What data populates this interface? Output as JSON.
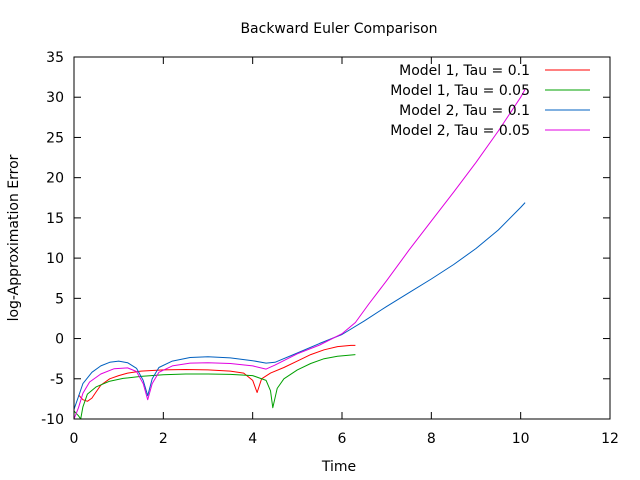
{
  "chart_data": {
    "type": "line",
    "title": "Backward Euler Comparison",
    "xlabel": "Time",
    "ylabel": "log-Approximation Error",
    "xlim": [
      0,
      12
    ],
    "ylim": [
      -10,
      35
    ],
    "xticks": [
      0,
      2,
      4,
      6,
      8,
      10,
      12
    ],
    "yticks": [
      -10,
      -5,
      0,
      5,
      10,
      15,
      20,
      25,
      30,
      35
    ],
    "grid": false,
    "legend_position": "top-right",
    "series": [
      {
        "name": "Model 1, Tau = 0.1",
        "color": "#ff0000",
        "points": [
          [
            0.1,
            -7.0
          ],
          [
            0.2,
            -7.6
          ],
          [
            0.3,
            -7.8
          ],
          [
            0.4,
            -7.4
          ],
          [
            0.5,
            -6.6
          ],
          [
            0.6,
            -5.8
          ],
          [
            0.8,
            -5.0
          ],
          [
            1.0,
            -4.6
          ],
          [
            1.2,
            -4.3
          ],
          [
            1.5,
            -4.05
          ],
          [
            2.0,
            -3.9
          ],
          [
            2.5,
            -3.85
          ],
          [
            3.0,
            -3.9
          ],
          [
            3.5,
            -4.05
          ],
          [
            3.8,
            -4.3
          ],
          [
            4.0,
            -5.2
          ],
          [
            4.1,
            -6.7
          ],
          [
            4.2,
            -5.0
          ],
          [
            4.4,
            -4.3
          ],
          [
            4.7,
            -3.6
          ],
          [
            5.0,
            -2.8
          ],
          [
            5.3,
            -2.0
          ],
          [
            5.6,
            -1.4
          ],
          [
            5.9,
            -1.0
          ],
          [
            6.2,
            -0.85
          ],
          [
            6.3,
            -0.85
          ]
        ]
      },
      {
        "name": "Model 1, Tau = 0.05",
        "color": "#00a000",
        "points": [
          [
            0.0,
            -9.0
          ],
          [
            0.1,
            -9.6
          ],
          [
            0.15,
            -10.0
          ],
          [
            0.2,
            -8.5
          ],
          [
            0.3,
            -6.9
          ],
          [
            0.5,
            -6.0
          ],
          [
            0.8,
            -5.3
          ],
          [
            1.1,
            -4.95
          ],
          [
            1.5,
            -4.7
          ],
          [
            2.0,
            -4.5
          ],
          [
            2.5,
            -4.4
          ],
          [
            3.0,
            -4.4
          ],
          [
            3.5,
            -4.45
          ],
          [
            4.0,
            -4.6
          ],
          [
            4.3,
            -5.2
          ],
          [
            4.4,
            -6.5
          ],
          [
            4.45,
            -8.6
          ],
          [
            4.55,
            -6.2
          ],
          [
            4.7,
            -5.0
          ],
          [
            5.0,
            -3.9
          ],
          [
            5.3,
            -3.1
          ],
          [
            5.6,
            -2.5
          ],
          [
            5.9,
            -2.2
          ],
          [
            6.3,
            -2.0
          ]
        ]
      },
      {
        "name": "Model 2, Tau = 0.1",
        "color": "#0060c0",
        "points": [
          [
            0.0,
            -8.8
          ],
          [
            0.1,
            -7.2
          ],
          [
            0.2,
            -5.6
          ],
          [
            0.4,
            -4.2
          ],
          [
            0.6,
            -3.4
          ],
          [
            0.8,
            -2.95
          ],
          [
            1.0,
            -2.8
          ],
          [
            1.2,
            -3.0
          ],
          [
            1.4,
            -3.7
          ],
          [
            1.55,
            -5.2
          ],
          [
            1.65,
            -7.1
          ],
          [
            1.75,
            -5.0
          ],
          [
            1.9,
            -3.6
          ],
          [
            2.2,
            -2.8
          ],
          [
            2.6,
            -2.35
          ],
          [
            3.0,
            -2.25
          ],
          [
            3.5,
            -2.4
          ],
          [
            4.0,
            -2.75
          ],
          [
            4.3,
            -3.05
          ],
          [
            4.5,
            -2.95
          ],
          [
            5.0,
            -1.8
          ],
          [
            5.5,
            -0.6
          ],
          [
            6.0,
            0.5
          ],
          [
            6.5,
            2.2
          ],
          [
            7.0,
            4.0
          ],
          [
            7.5,
            5.7
          ],
          [
            8.0,
            7.4
          ],
          [
            8.5,
            9.2
          ],
          [
            9.0,
            11.2
          ],
          [
            9.5,
            13.5
          ],
          [
            10.0,
            16.3
          ],
          [
            10.1,
            16.9
          ]
        ]
      },
      {
        "name": "Model 2, Tau = 0.05",
        "color": "#e000e0",
        "points": [
          [
            0.0,
            -10.0
          ],
          [
            0.1,
            -8.6
          ],
          [
            0.2,
            -6.8
          ],
          [
            0.35,
            -5.4
          ],
          [
            0.6,
            -4.4
          ],
          [
            0.9,
            -3.75
          ],
          [
            1.2,
            -3.65
          ],
          [
            1.4,
            -4.1
          ],
          [
            1.55,
            -5.6
          ],
          [
            1.65,
            -7.6
          ],
          [
            1.75,
            -5.6
          ],
          [
            1.9,
            -4.2
          ],
          [
            2.2,
            -3.4
          ],
          [
            2.6,
            -3.05
          ],
          [
            3.0,
            -3.0
          ],
          [
            3.5,
            -3.1
          ],
          [
            4.0,
            -3.4
          ],
          [
            4.3,
            -3.8
          ],
          [
            4.5,
            -3.3
          ],
          [
            5.0,
            -1.9
          ],
          [
            5.5,
            -0.8
          ],
          [
            6.0,
            0.6
          ],
          [
            6.3,
            2.0
          ],
          [
            6.6,
            4.3
          ],
          [
            7.0,
            7.2
          ],
          [
            7.5,
            11.0
          ],
          [
            8.0,
            14.6
          ],
          [
            8.5,
            18.2
          ],
          [
            9.0,
            21.9
          ],
          [
            9.5,
            25.8
          ],
          [
            10.0,
            30.0
          ],
          [
            10.1,
            31.0
          ]
        ]
      }
    ]
  }
}
